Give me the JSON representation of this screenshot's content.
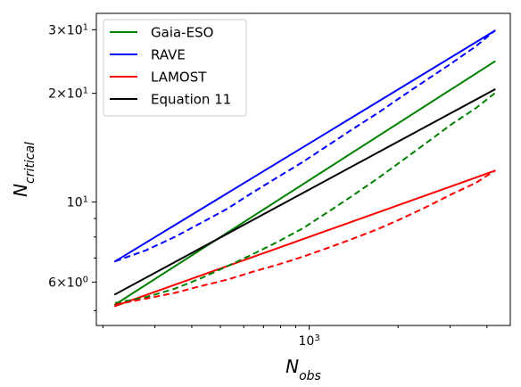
{
  "chart_data": {
    "type": "line",
    "xscale": "log",
    "yscale": "log",
    "xlim": [
      190,
      4800
    ],
    "ylim": [
      4.55,
      33.3
    ],
    "grid": false,
    "legend_position": "top-left",
    "xlabel_base": "N",
    "xlabel_sub": "obs",
    "ylabel_base": "N",
    "ylabel_sub": "critical",
    "x_ticks": [
      {
        "value": 1000,
        "base": "10",
        "exp": "3"
      }
    ],
    "y_ticks": [
      {
        "value": 6,
        "mant": "6",
        "base": "10",
        "exp": "0"
      },
      {
        "value": 10,
        "mant": "",
        "base": "10",
        "exp": "1"
      },
      {
        "value": 20,
        "mant": "2",
        "base": "10",
        "exp": "1"
      },
      {
        "value": 30,
        "mant": "3",
        "base": "10",
        "exp": "1"
      }
    ],
    "series": [
      {
        "name": "Gaia-ESO",
        "color": "#008000",
        "style": "solid",
        "x": [
          220,
          4250
        ],
        "y": [
          5.2,
          24.5
        ]
      },
      {
        "name": "RAVE",
        "color": "#0000ff",
        "style": "solid",
        "x": [
          220,
          4250
        ],
        "y": [
          6.85,
          29.8
        ]
      },
      {
        "name": "LAMOST",
        "color": "#ff0000",
        "style": "solid",
        "x": [
          220,
          4250
        ],
        "y": [
          5.15,
          12.2
        ]
      },
      {
        "name": "Equation 11",
        "color": "#000000",
        "style": "solid",
        "x": [
          220,
          4250
        ],
        "y": [
          5.55,
          20.5
        ]
      },
      {
        "name": "",
        "color": "#008000",
        "style": "dashed",
        "x": [
          220,
          280,
          350,
          430,
          530,
          640,
          780,
          950,
          1150,
          1400,
          1700,
          2060,
          2500,
          3030,
          3670,
          4250
        ],
        "y": [
          5.25,
          5.45,
          5.75,
          6.15,
          6.65,
          7.15,
          7.75,
          8.45,
          9.35,
          10.4,
          11.6,
          13.0,
          14.6,
          16.4,
          18.2,
          20.0
        ]
      },
      {
        "name": "",
        "color": "#0000ff",
        "style": "dashed",
        "x": [
          220,
          280,
          350,
          430,
          530,
          640,
          780,
          950,
          1150,
          1400,
          1700,
          2060,
          2500,
          3030,
          3670,
          4250
        ],
        "y": [
          6.85,
          7.35,
          8.0,
          8.75,
          9.6,
          10.6,
          11.7,
          12.9,
          14.3,
          15.9,
          17.6,
          19.6,
          21.8,
          24.2,
          27.0,
          29.8
        ]
      },
      {
        "name": "",
        "color": "#ff0000",
        "style": "dashed",
        "x": [
          220,
          280,
          350,
          430,
          530,
          640,
          780,
          950,
          1150,
          1400,
          1700,
          2060,
          2500,
          3030,
          3670,
          4250
        ],
        "y": [
          5.2,
          5.4,
          5.6,
          5.85,
          6.1,
          6.4,
          6.7,
          7.05,
          7.45,
          7.9,
          8.4,
          9.0,
          9.7,
          10.5,
          11.3,
          12.2
        ]
      }
    ]
  }
}
